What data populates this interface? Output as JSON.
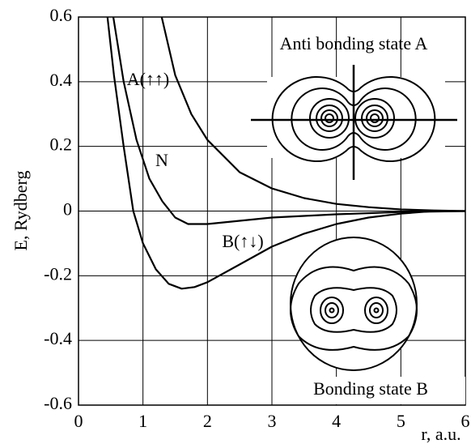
{
  "chart_data": {
    "type": "line",
    "xlabel": "r, a.u.",
    "ylabel": "E, Rydberg",
    "xlim": [
      0,
      6
    ],
    "xticks": [
      0,
      1,
      2,
      3,
      4,
      5,
      6
    ],
    "ylim": [
      -0.6,
      0.6
    ],
    "yticks": [
      -0.6,
      -0.4,
      -0.2,
      0,
      0.2,
      0.4,
      0.6
    ],
    "grid": true,
    "series": [
      {
        "color": "#000000",
        "x": [
          0.45,
          0.55,
          0.7,
          0.85,
          1.0,
          1.2,
          1.4,
          1.6,
          1.8,
          2.0,
          2.5,
          3,
          3.5,
          4,
          4.5,
          5,
          5.5,
          6
        ],
        "values": [
          0.6,
          0.42,
          0.2,
          0.0,
          -0.1,
          -0.18,
          -0.225,
          -0.24,
          -0.235,
          -0.22,
          -0.165,
          -0.11,
          -0.07,
          -0.04,
          -0.02,
          -0.008,
          0,
          0
        ]
      },
      {
        "color": "#000000",
        "x": [
          0.54,
          0.7,
          0.9,
          1.1,
          1.3,
          1.5,
          1.7,
          2.0,
          2.5,
          3,
          3.5,
          4,
          5,
          6
        ],
        "values": [
          0.6,
          0.4,
          0.22,
          0.1,
          0.03,
          -0.02,
          -0.04,
          -0.04,
          -0.03,
          -0.02,
          -0.015,
          -0.01,
          -0.003,
          0
        ]
      },
      {
        "color": "#000000",
        "x": [
          1.29,
          1.5,
          1.75,
          2,
          2.5,
          3,
          3.5,
          4,
          4.5,
          5,
          5.5,
          6
        ],
        "values": [
          0.6,
          0.42,
          0.3,
          0.22,
          0.12,
          0.07,
          0.04,
          0.022,
          0.012,
          0.005,
          0.002,
          0
        ]
      }
    ],
    "annotations": [
      "A(↑↑)",
      "N",
      "B(↑↓)",
      "Anti bonding state A",
      "Bonding state B"
    ]
  }
}
